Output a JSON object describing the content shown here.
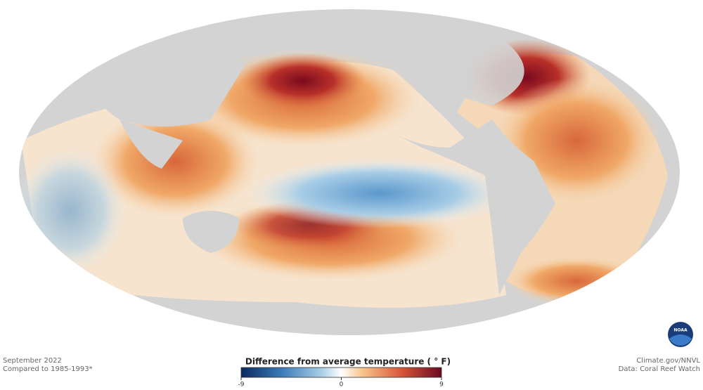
{
  "map": {
    "caption": [
      "September 2022",
      "Compared to 1985-1993*"
    ],
    "credits": [
      "Climate.gov/NNVL",
      "Data: Coral Reef Watch"
    ],
    "logo": "NOAA"
  },
  "legend": {
    "title": "Difference from average temperature ( ° F)",
    "range": [
      -9,
      9
    ],
    "ticks": [
      -9,
      0,
      9
    ]
  }
}
